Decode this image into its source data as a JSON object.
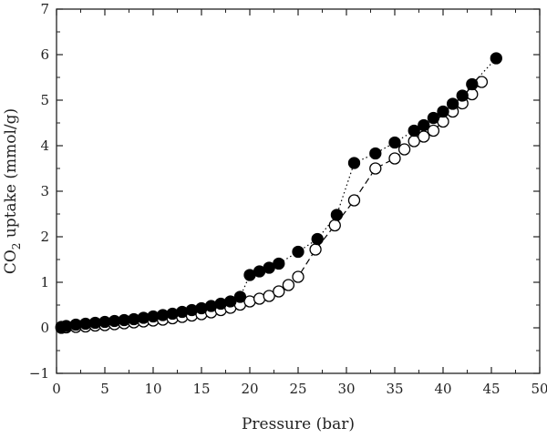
{
  "chart_data": {
    "type": "scatter",
    "title": "",
    "xlabel": "Pressure (bar)",
    "ylabel_main": "CO",
    "ylabel_sub": "2",
    "ylabel_rest": " uptake (mmol/g)",
    "xlim": [
      0,
      50
    ],
    "ylim": [
      -1,
      7
    ],
    "xticks": [
      "0",
      "5",
      "10",
      "15",
      "20",
      "25",
      "30",
      "35",
      "40",
      "45",
      "50"
    ],
    "yticks": [
      "−1",
      "0",
      "1",
      "2",
      "3",
      "4",
      "5",
      "6",
      "7"
    ],
    "grid": false,
    "series": [
      {
        "marker": "filled-circle",
        "line": "dotted",
        "color": "#000000",
        "points": [
          [
            0.5,
            0.02
          ],
          [
            1.0,
            0.04
          ],
          [
            2.0,
            0.07
          ],
          [
            3.0,
            0.09
          ],
          [
            4.0,
            0.11
          ],
          [
            5.0,
            0.13
          ],
          [
            6.0,
            0.15
          ],
          [
            7.0,
            0.17
          ],
          [
            8.0,
            0.19
          ],
          [
            9.0,
            0.22
          ],
          [
            10.0,
            0.25
          ],
          [
            11.0,
            0.28
          ],
          [
            12.0,
            0.31
          ],
          [
            13.0,
            0.35
          ],
          [
            14.0,
            0.39
          ],
          [
            15.0,
            0.43
          ],
          [
            16.0,
            0.48
          ],
          [
            17.0,
            0.53
          ],
          [
            18.0,
            0.58
          ],
          [
            19.0,
            0.68
          ],
          [
            20.0,
            1.16
          ],
          [
            21.0,
            1.24
          ],
          [
            22.0,
            1.32
          ],
          [
            23.0,
            1.41
          ],
          [
            25.0,
            1.67
          ],
          [
            27.0,
            1.95
          ],
          [
            29.0,
            2.48
          ],
          [
            30.8,
            3.62
          ],
          [
            33.0,
            3.83
          ],
          [
            35.0,
            4.07
          ],
          [
            37.0,
            4.33
          ],
          [
            38.0,
            4.45
          ],
          [
            39.0,
            4.61
          ],
          [
            40.0,
            4.75
          ],
          [
            41.0,
            4.92
          ],
          [
            42.0,
            5.1
          ],
          [
            43.0,
            5.35
          ],
          [
            45.5,
            5.92
          ]
        ]
      },
      {
        "marker": "open-circle",
        "line": "dashed",
        "color": "#000000",
        "points": [
          [
            0.5,
            0.0
          ],
          [
            1.0,
            0.01
          ],
          [
            2.0,
            0.02
          ],
          [
            3.0,
            0.03
          ],
          [
            4.0,
            0.05
          ],
          [
            5.0,
            0.06
          ],
          [
            6.0,
            0.08
          ],
          [
            7.0,
            0.1
          ],
          [
            8.0,
            0.12
          ],
          [
            9.0,
            0.14
          ],
          [
            10.0,
            0.16
          ],
          [
            11.0,
            0.18
          ],
          [
            12.0,
            0.21
          ],
          [
            13.0,
            0.24
          ],
          [
            14.0,
            0.27
          ],
          [
            15.0,
            0.3
          ],
          [
            16.0,
            0.34
          ],
          [
            17.0,
            0.39
          ],
          [
            18.0,
            0.44
          ],
          [
            19.0,
            0.51
          ],
          [
            20.0,
            0.58
          ],
          [
            21.0,
            0.64
          ],
          [
            22.0,
            0.7
          ],
          [
            23.0,
            0.8
          ],
          [
            24.0,
            0.94
          ],
          [
            25.0,
            1.12
          ],
          [
            26.8,
            1.72
          ],
          [
            28.8,
            2.25
          ],
          [
            30.8,
            2.8
          ],
          [
            33.0,
            3.5
          ],
          [
            35.0,
            3.72
          ],
          [
            36.0,
            3.92
          ],
          [
            37.0,
            4.1
          ],
          [
            38.0,
            4.2
          ],
          [
            39.0,
            4.33
          ],
          [
            40.0,
            4.53
          ],
          [
            41.0,
            4.75
          ],
          [
            42.0,
            4.93
          ],
          [
            43.0,
            5.13
          ],
          [
            44.0,
            5.4
          ]
        ]
      }
    ]
  }
}
